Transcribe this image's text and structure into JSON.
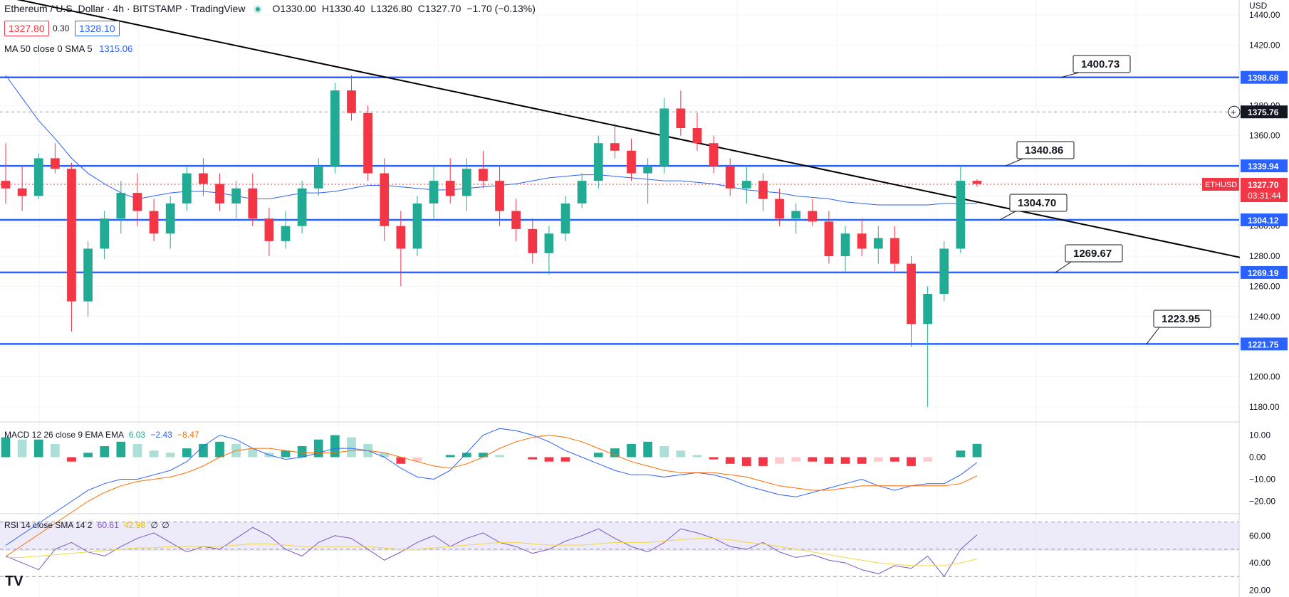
{
  "header": {
    "title": "Ethereum / U.S. Dollar · 4h · BITSTAMP · TradingView",
    "ohlc_open": "O1330.00",
    "ohlc_high": "H1330.40",
    "ohlc_low": "L1326.80",
    "ohlc_close": "C1327.70",
    "change": "−1.70 (−0.13%)",
    "bid": "1327.80",
    "spread": "0.30",
    "ask": "1328.10",
    "ma_label": "MA 50 close 0 SMA 5",
    "ma_value": "1315.06"
  },
  "price_axis": {
    "currency": "USD",
    "ticks": [
      "1440.00",
      "1420.00",
      "1400.00",
      "1380.00",
      "1360.00",
      "1320.00",
      "1300.00",
      "1280.00",
      "1260.00",
      "1240.00",
      "1200.00",
      "1180.00"
    ],
    "tags": [
      {
        "value": "1398.68",
        "color": "#2962ff"
      },
      {
        "value": "1375.76",
        "color": "#131722"
      },
      {
        "value": "1339.94",
        "color": "#2962ff"
      },
      {
        "value": "1304.12",
        "color": "#2962ff"
      },
      {
        "value": "1269.19",
        "color": "#2962ff"
      },
      {
        "value": "1221.75",
        "color": "#2962ff"
      }
    ],
    "symbol_tag": "ETHUSD",
    "last_price": "1327.70",
    "countdown": "03:31:44"
  },
  "annotations": [
    "1400.73",
    "1340.86",
    "1304.70",
    "1269.67",
    "1223.95"
  ],
  "macd": {
    "label": "MACD 12 26 close 9 EMA EMA",
    "hist": "6.03",
    "macd": "−2.43",
    "signal": "−8.47",
    "ticks": [
      "10.00",
      "0.00",
      "−10.00",
      "−20.00"
    ]
  },
  "rsi": {
    "label": "RSI 14 close SMA 14 2",
    "rsi": "60.61",
    "sma": "42.98",
    "v1": "∅",
    "v2": "∅",
    "ticks": [
      "60.00",
      "40.00",
      "20.00"
    ]
  },
  "logo": "TV",
  "chart_data": {
    "type": "candlestick",
    "symbol": "ETHUSD",
    "interval": "4h",
    "ylim": [
      1170,
      1450
    ],
    "horizontal_levels": [
      1398.68,
      1339.94,
      1304.12,
      1269.19,
      1221.75
    ],
    "last_price": 1327.7,
    "candles": [
      [
        1330,
        1355,
        1315,
        1325
      ],
      [
        1325,
        1340,
        1310,
        1320
      ],
      [
        1320,
        1348,
        1318,
        1345
      ],
      [
        1345,
        1355,
        1335,
        1338
      ],
      [
        1338,
        1342,
        1230,
        1250
      ],
      [
        1250,
        1290,
        1240,
        1285
      ],
      [
        1285,
        1310,
        1278,
        1305
      ],
      [
        1305,
        1330,
        1295,
        1322
      ],
      [
        1322,
        1335,
        1300,
        1310
      ],
      [
        1310,
        1318,
        1290,
        1295
      ],
      [
        1295,
        1320,
        1285,
        1315
      ],
      [
        1315,
        1340,
        1310,
        1335
      ],
      [
        1335,
        1345,
        1320,
        1328
      ],
      [
        1328,
        1335,
        1310,
        1315
      ],
      [
        1315,
        1330,
        1305,
        1325
      ],
      [
        1325,
        1335,
        1300,
        1305
      ],
      [
        1305,
        1312,
        1280,
        1290
      ],
      [
        1290,
        1310,
        1285,
        1300
      ],
      [
        1300,
        1330,
        1295,
        1325
      ],
      [
        1325,
        1345,
        1320,
        1340
      ],
      [
        1340,
        1395,
        1335,
        1390
      ],
      [
        1390,
        1400,
        1370,
        1375
      ],
      [
        1375,
        1380,
        1330,
        1335
      ],
      [
        1335,
        1345,
        1290,
        1300
      ],
      [
        1300,
        1310,
        1260,
        1285
      ],
      [
        1285,
        1320,
        1280,
        1315
      ],
      [
        1315,
        1340,
        1305,
        1330
      ],
      [
        1330,
        1345,
        1315,
        1320
      ],
      [
        1320,
        1345,
        1310,
        1338
      ],
      [
        1338,
        1350,
        1325,
        1330
      ],
      [
        1330,
        1340,
        1300,
        1310
      ],
      [
        1310,
        1318,
        1290,
        1298
      ],
      [
        1298,
        1305,
        1275,
        1282
      ],
      [
        1282,
        1300,
        1268,
        1295
      ],
      [
        1295,
        1320,
        1290,
        1315
      ],
      [
        1315,
        1335,
        1312,
        1330
      ],
      [
        1330,
        1360,
        1325,
        1355
      ],
      [
        1355,
        1368,
        1345,
        1350
      ],
      [
        1350,
        1358,
        1330,
        1335
      ],
      [
        1335,
        1345,
        1315,
        1340
      ],
      [
        1340,
        1385,
        1335,
        1378
      ],
      [
        1378,
        1390,
        1360,
        1365
      ],
      [
        1365,
        1375,
        1350,
        1355
      ],
      [
        1355,
        1360,
        1335,
        1340
      ],
      [
        1340,
        1345,
        1320,
        1325
      ],
      [
        1325,
        1340,
        1315,
        1330
      ],
      [
        1330,
        1335,
        1310,
        1318
      ],
      [
        1318,
        1325,
        1300,
        1305
      ],
      [
        1305,
        1315,
        1295,
        1310
      ],
      [
        1310,
        1318,
        1300,
        1303
      ],
      [
        1303,
        1310,
        1275,
        1280
      ],
      [
        1280,
        1300,
        1270,
        1295
      ],
      [
        1295,
        1305,
        1280,
        1285
      ],
      [
        1285,
        1300,
        1275,
        1292
      ],
      [
        1292,
        1300,
        1270,
        1275
      ],
      [
        1275,
        1280,
        1220,
        1235
      ],
      [
        1235,
        1260,
        1180,
        1255
      ],
      [
        1255,
        1290,
        1250,
        1285
      ],
      [
        1285,
        1340,
        1282,
        1330
      ],
      [
        1330,
        1331,
        1326,
        1328
      ]
    ],
    "ma50": [
      1400,
      1385,
      1370,
      1358,
      1345,
      1335,
      1328,
      1322,
      1318,
      1320,
      1322,
      1323,
      1323,
      1322,
      1320,
      1318,
      1318,
      1320,
      1322,
      1322,
      1323,
      1325,
      1327,
      1327,
      1326,
      1325,
      1324,
      1324,
      1325,
      1326,
      1327,
      1328,
      1330,
      1332,
      1333,
      1334,
      1334,
      1333,
      1332,
      1331,
      1330,
      1330,
      1329,
      1328,
      1326,
      1324,
      1323,
      1322,
      1320,
      1319,
      1318,
      1316,
      1315,
      1314,
      1314,
      1314,
      1314,
      1315,
      1315,
      1315
    ],
    "trendline": [
      [
        0,
        1452
      ],
      [
        59,
        1316
      ]
    ],
    "macd_series": {
      "hist": [
        9,
        8,
        8,
        6,
        -2,
        2,
        5,
        7,
        6,
        3,
        2,
        4,
        6,
        7,
        6,
        4,
        2,
        3,
        5,
        8,
        10,
        9,
        6,
        2,
        -3,
        -2,
        0,
        1,
        2,
        2,
        1,
        0,
        -1,
        -2,
        -2,
        0,
        2,
        4,
        6,
        7,
        5,
        3,
        1,
        -1,
        -3,
        -4,
        -4,
        -3,
        -2,
        -2,
        -3,
        -3,
        -3,
        -2,
        -2,
        -4,
        -2,
        0,
        3,
        6.03
      ],
      "macd": [
        -40,
        -35,
        -30,
        -25,
        -20,
        -15,
        -12,
        -10,
        -10,
        -8,
        -6,
        -2,
        5,
        10,
        8,
        4,
        1,
        -1,
        0,
        2,
        4,
        4,
        3,
        0,
        -5,
        -9,
        -10,
        -6,
        2,
        10,
        13,
        12,
        10,
        7,
        3,
        0,
        -3,
        -6,
        -8,
        -8,
        -9,
        -8,
        -7,
        -8,
        -10,
        -13,
        -15,
        -17,
        -18,
        -16,
        -14,
        -12,
        -10,
        -13,
        -15,
        -13,
        -12,
        -12,
        -8,
        -2.43
      ],
      "signal": [
        -45,
        -40,
        -35,
        -30,
        -25,
        -20,
        -16,
        -13,
        -11,
        -10,
        -9,
        -7,
        -4,
        0,
        3,
        4,
        4,
        3,
        2,
        2,
        2,
        3,
        3,
        2,
        0,
        -2,
        -4,
        -5,
        -3,
        0,
        4,
        7,
        9,
        10,
        9,
        7,
        4,
        1,
        -2,
        -4,
        -6,
        -7,
        -7,
        -7,
        -8,
        -9,
        -11,
        -13,
        -14,
        -15,
        -15,
        -14,
        -13,
        -13,
        -13,
        -13,
        -13,
        -13,
        -12,
        -8.47
      ]
    },
    "rsi_series": {
      "rsi": [
        45,
        40,
        35,
        50,
        55,
        48,
        45,
        52,
        58,
        62,
        55,
        48,
        52,
        50,
        58,
        66,
        60,
        50,
        45,
        55,
        60,
        58,
        50,
        42,
        48,
        55,
        60,
        52,
        58,
        62,
        55,
        52,
        47,
        50,
        56,
        60,
        65,
        58,
        52,
        48,
        55,
        65,
        62,
        58,
        52,
        50,
        55,
        48,
        44,
        46,
        42,
        40,
        35,
        32,
        38,
        36,
        45,
        30,
        50,
        60.61
      ],
      "sma": [
        44,
        44,
        45,
        46,
        47,
        48,
        49,
        50,
        51,
        51,
        52,
        52,
        52,
        52,
        53,
        54,
        54,
        53,
        52,
        52,
        52,
        52,
        52,
        51,
        50,
        50,
        51,
        52,
        53,
        54,
        55,
        55,
        54,
        53,
        53,
        53,
        54,
        55,
        55,
        55,
        56,
        57,
        58,
        58,
        57,
        55,
        54,
        52,
        50,
        48,
        46,
        44,
        42,
        40,
        39,
        38,
        38,
        38,
        40,
        42.98
      ]
    }
  }
}
